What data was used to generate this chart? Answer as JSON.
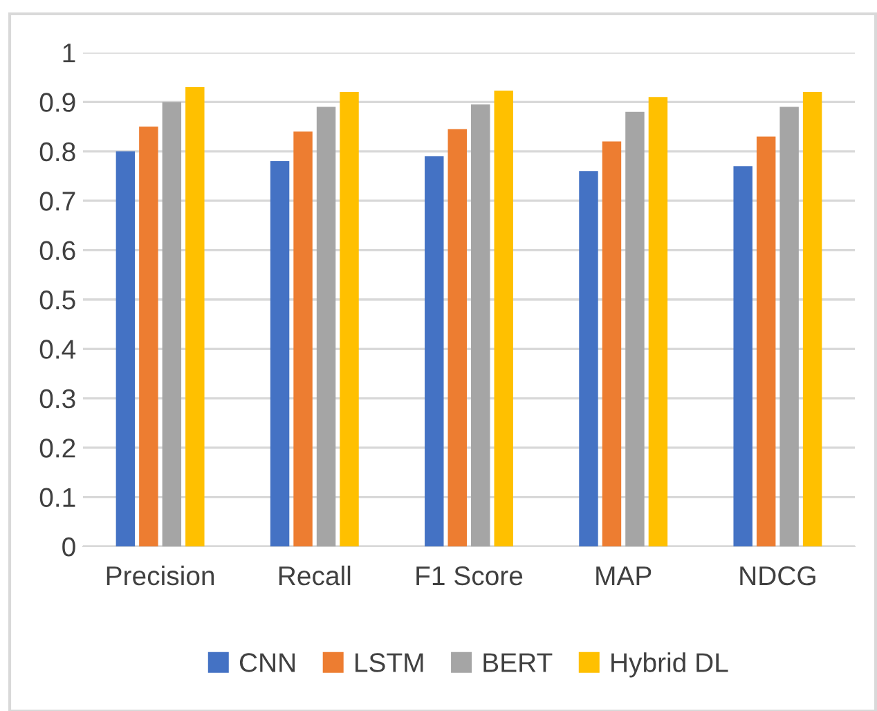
{
  "chart_data": {
    "type": "bar",
    "categories": [
      "Precision",
      "Recall",
      "F1 Score",
      "MAP",
      "NDCG"
    ],
    "series": [
      {
        "name": "CNN",
        "color": "#4472c4",
        "values": [
          0.8,
          0.78,
          0.79,
          0.76,
          0.77
        ]
      },
      {
        "name": "LSTM",
        "color": "#ed7d31",
        "values": [
          0.85,
          0.84,
          0.845,
          0.82,
          0.83
        ]
      },
      {
        "name": "BERT",
        "color": "#a5a5a5",
        "values": [
          0.9,
          0.89,
          0.895,
          0.88,
          0.89
        ]
      },
      {
        "name": "Hybrid DL",
        "color": "#ffc000",
        "values": [
          0.93,
          0.92,
          0.923,
          0.91,
          0.92
        ]
      }
    ],
    "ylim": [
      0,
      1
    ],
    "yticks": [
      0,
      0.1,
      0.2,
      0.3,
      0.4,
      0.5,
      0.6,
      0.7,
      0.8,
      0.9,
      1
    ],
    "grid": "y",
    "legend": "bottom"
  }
}
